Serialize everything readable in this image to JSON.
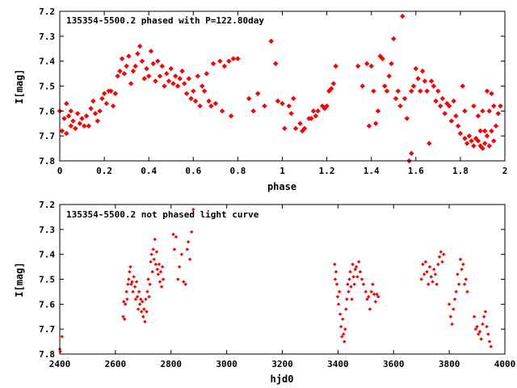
{
  "chart_data": [
    {
      "type": "scatter",
      "title": "135354-5500.2 phased with P=122.80day",
      "xlabel": "phase",
      "ylabel": "I[mag]",
      "xlim": [
        0,
        2
      ],
      "ylim": [
        7.2,
        7.8
      ],
      "y_inverted": true,
      "x_ticks": [
        "0",
        "0.2",
        "0.4",
        "0.6",
        "0.8",
        "1",
        "1.2",
        "1.4",
        "1.6",
        "1.8",
        "2"
      ],
      "y_ticks": [
        "7.2",
        "7.3",
        "7.4",
        "7.5",
        "7.6",
        "7.7",
        "7.8"
      ],
      "color": "#ff0000",
      "marker": "filled-diamond",
      "points": [
        [
          0.0,
          7.6
        ],
        [
          0.01,
          7.68
        ],
        [
          0.02,
          7.63
        ],
        [
          0.03,
          7.57
        ],
        [
          0.03,
          7.69
        ],
        [
          0.04,
          7.62
        ],
        [
          0.05,
          7.66
        ],
        [
          0.05,
          7.6
        ],
        [
          0.06,
          7.64
        ],
        [
          0.07,
          7.67
        ],
        [
          0.08,
          7.61
        ],
        [
          0.09,
          7.65
        ],
        [
          0.1,
          7.63
        ],
        [
          0.11,
          7.66
        ],
        [
          0.12,
          7.62
        ],
        [
          0.13,
          7.66
        ],
        [
          0.14,
          7.59
        ],
        [
          0.15,
          7.56
        ],
        [
          0.16,
          7.61
        ],
        [
          0.17,
          7.64
        ],
        [
          0.18,
          7.6
        ],
        [
          0.19,
          7.55
        ],
        [
          0.2,
          7.53
        ],
        [
          0.21,
          7.57
        ],
        [
          0.22,
          7.52
        ],
        [
          0.23,
          7.52
        ],
        [
          0.24,
          7.58
        ],
        [
          0.25,
          7.53
        ],
        [
          0.26,
          7.46
        ],
        [
          0.27,
          7.44
        ],
        [
          0.28,
          7.39
        ],
        [
          0.29,
          7.45
        ],
        [
          0.3,
          7.42
        ],
        [
          0.31,
          7.38
        ],
        [
          0.32,
          7.49
        ],
        [
          0.33,
          7.44
        ],
        [
          0.34,
          7.42
        ],
        [
          0.35,
          7.37
        ],
        [
          0.36,
          7.34
        ],
        [
          0.37,
          7.4
        ],
        [
          0.38,
          7.47
        ],
        [
          0.39,
          7.43
        ],
        [
          0.4,
          7.46
        ],
        [
          0.41,
          7.36
        ],
        [
          0.42,
          7.41
        ],
        [
          0.43,
          7.48
        ],
        [
          0.44,
          7.4
        ],
        [
          0.45,
          7.46
        ],
        [
          0.46,
          7.42
        ],
        [
          0.47,
          7.5
        ],
        [
          0.48,
          7.45
        ],
        [
          0.49,
          7.48
        ],
        [
          0.5,
          7.43
        ],
        [
          0.51,
          7.49
        ],
        [
          0.52,
          7.46
        ],
        [
          0.53,
          7.5
        ],
        [
          0.54,
          7.47
        ],
        [
          0.55,
          7.44
        ],
        [
          0.56,
          7.49
        ],
        [
          0.57,
          7.53
        ],
        [
          0.58,
          7.47
        ],
        [
          0.59,
          7.55
        ],
        [
          0.6,
          7.52
        ],
        [
          0.61,
          7.56
        ],
        [
          0.62,
          7.46
        ],
        [
          0.63,
          7.58
        ],
        [
          0.64,
          7.5
        ],
        [
          0.65,
          7.52
        ],
        [
          0.66,
          7.45
        ],
        [
          0.67,
          7.56
        ],
        [
          0.68,
          7.58
        ],
        [
          0.69,
          7.41
        ],
        [
          0.7,
          7.57
        ],
        [
          0.72,
          7.4
        ],
        [
          0.73,
          7.6
        ],
        [
          0.74,
          7.42
        ],
        [
          0.76,
          7.4
        ],
        [
          0.77,
          7.62
        ],
        [
          0.78,
          7.39
        ],
        [
          0.8,
          7.39
        ],
        [
          0.85,
          7.55
        ],
        [
          0.87,
          7.6
        ],
        [
          0.89,
          7.53
        ],
        [
          0.92,
          7.58
        ],
        [
          0.95,
          7.32
        ],
        [
          0.97,
          7.41
        ],
        [
          0.98,
          7.56
        ],
        [
          1.0,
          7.57
        ],
        [
          1.01,
          7.67
        ],
        [
          1.03,
          7.58
        ],
        [
          1.04,
          7.61
        ],
        [
          1.05,
          7.55
        ],
        [
          1.06,
          7.67
        ],
        [
          1.08,
          7.65
        ],
        [
          1.09,
          7.68
        ],
        [
          1.1,
          7.67
        ],
        [
          1.12,
          7.63
        ],
        [
          1.13,
          7.63
        ],
        [
          1.14,
          7.6
        ],
        [
          1.15,
          7.62
        ],
        [
          1.16,
          7.6
        ],
        [
          1.18,
          7.58
        ],
        [
          1.19,
          7.59
        ],
        [
          1.2,
          7.58
        ],
        [
          1.21,
          7.52
        ],
        [
          1.22,
          7.51
        ],
        [
          1.23,
          7.49
        ],
        [
          1.24,
          7.42
        ],
        [
          1.34,
          7.42
        ],
        [
          1.36,
          7.5
        ],
        [
          1.38,
          7.41
        ],
        [
          1.39,
          7.66
        ],
        [
          1.4,
          7.42
        ],
        [
          1.41,
          7.52
        ],
        [
          1.42,
          7.65
        ],
        [
          1.43,
          7.6
        ],
        [
          1.44,
          7.38
        ],
        [
          1.45,
          7.39
        ],
        [
          1.46,
          7.5
        ],
        [
          1.47,
          7.52
        ],
        [
          1.48,
          7.46
        ],
        [
          1.49,
          7.41
        ],
        [
          1.5,
          7.31
        ],
        [
          1.51,
          7.55
        ],
        [
          1.52,
          7.52
        ],
        [
          1.53,
          7.58
        ],
        [
          1.54,
          7.22
        ],
        [
          1.55,
          7.55
        ],
        [
          1.56,
          7.63
        ],
        [
          1.57,
          7.8
        ],
        [
          1.58,
          7.77
        ],
        [
          1.58,
          7.52
        ],
        [
          1.59,
          7.5
        ],
        [
          1.6,
          7.43
        ],
        [
          1.61,
          7.47
        ],
        [
          1.62,
          7.52
        ],
        [
          1.63,
          7.44
        ],
        [
          1.64,
          7.48
        ],
        [
          1.65,
          7.52
        ],
        [
          1.66,
          7.73
        ],
        [
          1.67,
          7.48
        ],
        [
          1.68,
          7.5
        ],
        [
          1.69,
          7.56
        ],
        [
          1.7,
          7.52
        ],
        [
          1.71,
          7.58
        ],
        [
          1.72,
          7.55
        ],
        [
          1.73,
          7.61
        ],
        [
          1.74,
          7.57
        ],
        [
          1.75,
          7.58
        ],
        [
          1.76,
          7.64
        ],
        [
          1.77,
          7.56
        ],
        [
          1.78,
          7.62
        ],
        [
          1.79,
          7.66
        ],
        [
          1.8,
          7.69
        ],
        [
          1.81,
          7.5
        ],
        [
          1.82,
          7.71
        ],
        [
          1.82,
          7.6
        ],
        [
          1.83,
          7.73
        ],
        [
          1.84,
          7.7
        ],
        [
          1.85,
          7.72
        ],
        [
          1.86,
          7.58
        ],
        [
          1.86,
          7.74
        ],
        [
          1.87,
          7.71
        ],
        [
          1.88,
          7.72
        ],
        [
          1.88,
          7.62
        ],
        [
          1.89,
          7.74
        ],
        [
          1.89,
          7.68
        ],
        [
          1.9,
          7.75
        ],
        [
          1.9,
          7.6
        ],
        [
          1.91,
          7.68
        ],
        [
          1.91,
          7.73
        ],
        [
          1.92,
          7.7
        ],
        [
          1.92,
          7.52
        ],
        [
          1.93,
          7.74
        ],
        [
          1.93,
          7.6
        ],
        [
          1.94,
          7.68
        ],
        [
          1.94,
          7.53
        ],
        [
          1.95,
          7.72
        ],
        [
          1.95,
          7.58
        ],
        [
          1.96,
          7.66
        ],
        [
          1.97,
          7.61
        ],
        [
          1.98,
          7.58
        ]
      ]
    },
    {
      "type": "scatter",
      "title": "135354-5500.2 not phased light curve",
      "xlabel": "hjd0",
      "ylabel": "I[mag]",
      "xlim": [
        2400,
        4000
      ],
      "ylim": [
        7.2,
        7.8
      ],
      "y_inverted": true,
      "x_ticks": [
        "2400",
        "2600",
        "2800",
        "3000",
        "3200",
        "3400",
        "3600",
        "3800",
        "4000"
      ],
      "y_ticks": [
        "7.2",
        "7.3",
        "7.4",
        "7.5",
        "7.6",
        "7.7",
        "7.8"
      ],
      "color": "#ff0000",
      "marker": "small-diamond",
      "points": [
        [
          2400,
          7.78
        ],
        [
          2402,
          7.79
        ],
        [
          2408,
          7.73
        ],
        [
          2628,
          7.65
        ],
        [
          2630,
          7.59
        ],
        [
          2633,
          7.66
        ],
        [
          2636,
          7.6
        ],
        [
          2640,
          7.55
        ],
        [
          2642,
          7.58
        ],
        [
          2645,
          7.52
        ],
        [
          2648,
          7.5
        ],
        [
          2651,
          7.47
        ],
        [
          2654,
          7.45
        ],
        [
          2657,
          7.52
        ],
        [
          2660,
          7.51
        ],
        [
          2663,
          7.55
        ],
        [
          2666,
          7.49
        ],
        [
          2670,
          7.53
        ],
        [
          2673,
          7.58
        ],
        [
          2676,
          7.51
        ],
        [
          2679,
          7.57
        ],
        [
          2682,
          7.62
        ],
        [
          2685,
          7.55
        ],
        [
          2688,
          7.6
        ],
        [
          2691,
          7.58
        ],
        [
          2694,
          7.63
        ],
        [
          2697,
          7.59
        ],
        [
          2700,
          7.65
        ],
        [
          2703,
          7.62
        ],
        [
          2706,
          7.67
        ],
        [
          2709,
          7.58
        ],
        [
          2712,
          7.63
        ],
        [
          2715,
          7.55
        ],
        [
          2718,
          7.5
        ],
        [
          2721,
          7.57
        ],
        [
          2724,
          7.52
        ],
        [
          2727,
          7.43
        ],
        [
          2730,
          7.4
        ],
        [
          2733,
          7.47
        ],
        [
          2736,
          7.38
        ],
        [
          2739,
          7.42
        ],
        [
          2742,
          7.34
        ],
        [
          2745,
          7.44
        ],
        [
          2748,
          7.39
        ],
        [
          2751,
          7.46
        ],
        [
          2754,
          7.48
        ],
        [
          2757,
          7.44
        ],
        [
          2760,
          7.51
        ],
        [
          2763,
          7.47
        ],
        [
          2766,
          7.53
        ],
        [
          2769,
          7.45
        ],
        [
          2772,
          7.5
        ],
        [
          2808,
          7.32
        ],
        [
          2812,
          7.38
        ],
        [
          2818,
          7.33
        ],
        [
          2825,
          7.5
        ],
        [
          2830,
          7.45
        ],
        [
          2838,
          7.4
        ],
        [
          2845,
          7.51
        ],
        [
          2852,
          7.52
        ],
        [
          2858,
          7.38
        ],
        [
          2862,
          7.35
        ],
        [
          2868,
          7.42
        ],
        [
          2874,
          7.31
        ],
        [
          2880,
          7.22
        ],
        [
          3388,
          7.44
        ],
        [
          3390,
          7.5
        ],
        [
          3393,
          7.47
        ],
        [
          3396,
          7.52
        ],
        [
          3399,
          7.57
        ],
        [
          3402,
          7.6
        ],
        [
          3405,
          7.55
        ],
        [
          3408,
          7.64
        ],
        [
          3411,
          7.69
        ],
        [
          3414,
          7.73
        ],
        [
          3417,
          7.66
        ],
        [
          3420,
          7.72
        ],
        [
          3423,
          7.75
        ],
        [
          3426,
          7.7
        ],
        [
          3429,
          7.62
        ],
        [
          3432,
          7.58
        ],
        [
          3435,
          7.52
        ],
        [
          3438,
          7.55
        ],
        [
          3441,
          7.5
        ],
        [
          3444,
          7.47
        ],
        [
          3447,
          7.53
        ],
        [
          3450,
          7.58
        ],
        [
          3453,
          7.44
        ],
        [
          3456,
          7.49
        ],
        [
          3459,
          7.52
        ],
        [
          3462,
          7.46
        ],
        [
          3466,
          7.45
        ],
        [
          3470,
          7.49
        ],
        [
          3475,
          7.43
        ],
        [
          3480,
          7.47
        ],
        [
          3486,
          7.5
        ],
        [
          3492,
          7.52
        ],
        [
          3500,
          7.55
        ],
        [
          3505,
          7.58
        ],
        [
          3510,
          7.57
        ],
        [
          3515,
          7.62
        ],
        [
          3520,
          7.55
        ],
        [
          3525,
          7.52
        ],
        [
          3530,
          7.56
        ],
        [
          3535,
          7.59
        ],
        [
          3540,
          7.56
        ],
        [
          3545,
          7.57
        ],
        [
          3700,
          7.5
        ],
        [
          3705,
          7.44
        ],
        [
          3710,
          7.48
        ],
        [
          3715,
          7.43
        ],
        [
          3720,
          7.47
        ],
        [
          3725,
          7.52
        ],
        [
          3730,
          7.45
        ],
        [
          3735,
          7.49
        ],
        [
          3740,
          7.51
        ],
        [
          3745,
          7.46
        ],
        [
          3750,
          7.48
        ],
        [
          3755,
          7.52
        ],
        [
          3760,
          7.44
        ],
        [
          3765,
          7.41
        ],
        [
          3770,
          7.39
        ],
        [
          3775,
          7.43
        ],
        [
          3780,
          7.4
        ],
        [
          3800,
          7.6
        ],
        [
          3805,
          7.65
        ],
        [
          3810,
          7.68
        ],
        [
          3815,
          7.62
        ],
        [
          3820,
          7.58
        ],
        [
          3825,
          7.55
        ],
        [
          3830,
          7.48
        ],
        [
          3835,
          7.52
        ],
        [
          3840,
          7.42
        ],
        [
          3845,
          7.46
        ],
        [
          3850,
          7.44
        ],
        [
          3855,
          7.52
        ],
        [
          3860,
          7.5
        ],
        [
          3865,
          7.55
        ],
        [
          3890,
          7.65
        ],
        [
          3895,
          7.7
        ],
        [
          3900,
          7.69
        ],
        [
          3905,
          7.72
        ],
        [
          3910,
          7.71
        ],
        [
          3915,
          7.74
        ],
        [
          3920,
          7.68
        ],
        [
          3925,
          7.65
        ],
        [
          3930,
          7.63
        ],
        [
          3935,
          7.69
        ],
        [
          3940,
          7.72
        ],
        [
          3945,
          7.75
        ],
        [
          3950,
          7.77
        ]
      ]
    }
  ]
}
